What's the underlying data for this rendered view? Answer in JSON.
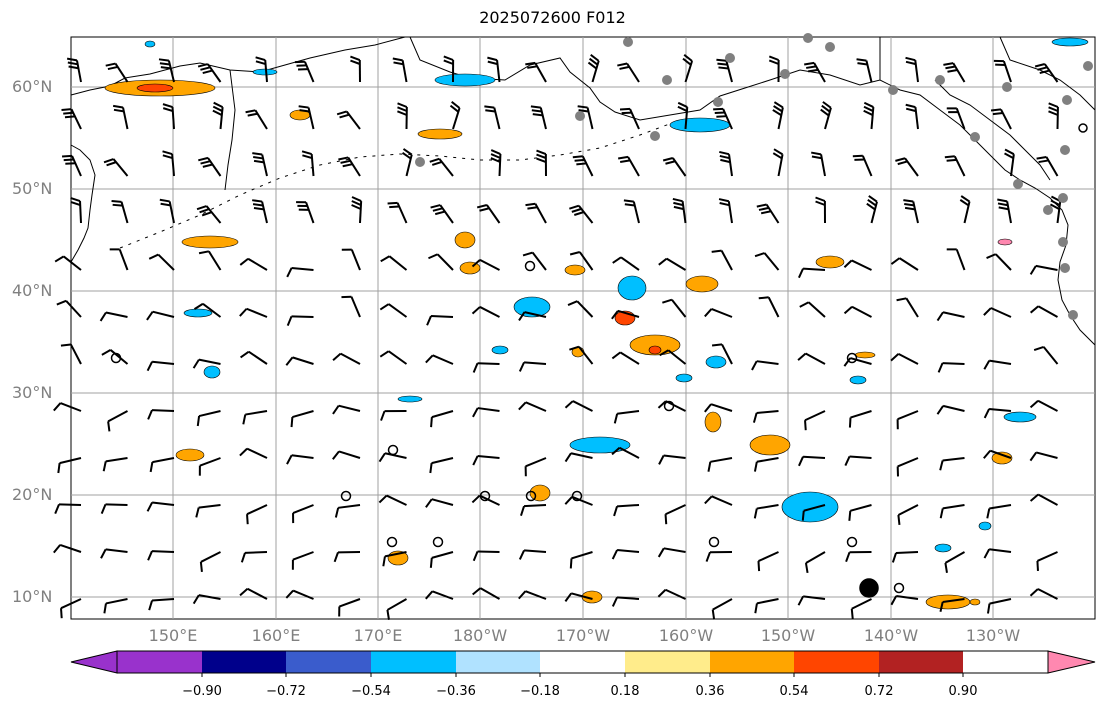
{
  "title": "2025072600 F012",
  "lat_labels": [
    "60°N",
    "50°N",
    "40°N",
    "30°N",
    "20°N",
    "10°N"
  ],
  "lon_labels": [
    "150°E",
    "160°E",
    "170°E",
    "180°W",
    "170°W",
    "160°W",
    "150°W",
    "140°W",
    "130°W"
  ],
  "colorbar": {
    "ticks": [
      "−0.90",
      "−0.72",
      "−0.54",
      "−0.36",
      "−0.18",
      "0.18",
      "0.36",
      "0.54",
      "0.72",
      "0.90"
    ],
    "colors": [
      "#9932cc",
      "#00008b",
      "#3a5ccc",
      "#00bfff",
      "#b0e2ff",
      "#ffffff",
      "#ffec8b",
      "#ffa500",
      "#ff4500",
      "#b22222",
      "#ff88b0"
    ]
  },
  "colors": {
    "land_outline": "#000000",
    "grid": "#a0a0a0",
    "station_marker": "#808080",
    "positive_contour": "#ffa500",
    "negative_contour": "#00bfff"
  }
}
